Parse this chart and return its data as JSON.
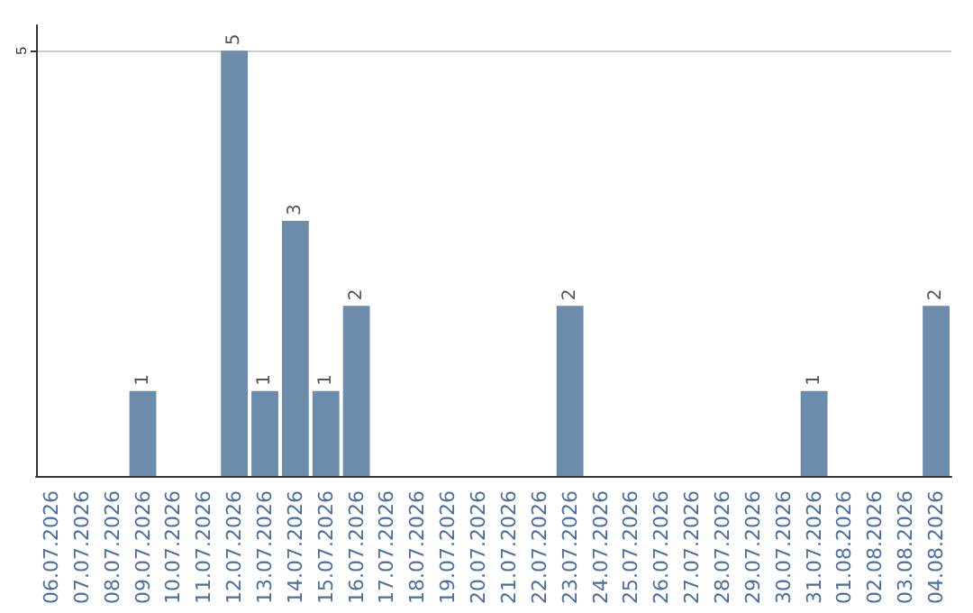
{
  "chart_data": {
    "type": "bar",
    "categories": [
      "06.07.2026",
      "07.07.2026",
      "08.07.2026",
      "09.07.2026",
      "10.07.2026",
      "11.07.2026",
      "12.07.2026",
      "13.07.2026",
      "14.07.2026",
      "15.07.2026",
      "16.07.2026",
      "17.07.2026",
      "18.07.2026",
      "19.07.2026",
      "20.07.2026",
      "21.07.2026",
      "22.07.2026",
      "23.07.2026",
      "24.07.2026",
      "25.07.2026",
      "26.07.2026",
      "27.07.2026",
      "28.07.2026",
      "29.07.2026",
      "30.07.2026",
      "31.07.2026",
      "01.08.2026",
      "02.08.2026",
      "03.08.2026",
      "04.08.2026"
    ],
    "values": [
      null,
      null,
      null,
      1,
      null,
      null,
      5,
      1,
      3,
      1,
      2,
      null,
      null,
      null,
      null,
      null,
      null,
      2,
      null,
      null,
      null,
      null,
      null,
      null,
      null,
      1,
      null,
      null,
      null,
      2
    ],
    "color": "#6d8bab",
    "ylim": [
      0,
      5.3
    ],
    "yticks": [
      5
    ],
    "grid": "y",
    "data_labels": true
  }
}
